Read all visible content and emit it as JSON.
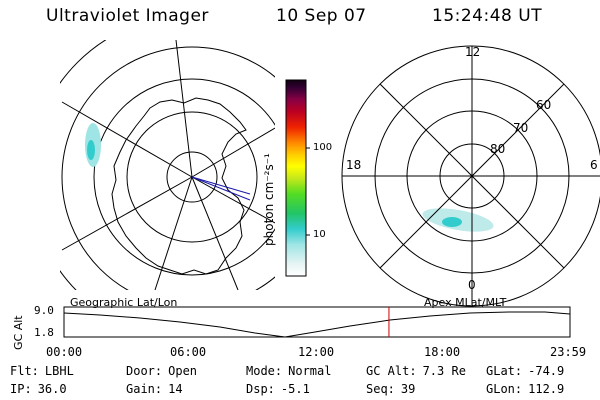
{
  "header": {
    "instrument": "Ultraviolet Imager",
    "date": "10 Sep 07",
    "time": "15:24:48 UT"
  },
  "colorbar": {
    "unit": "photon cm⁻²s⁻¹",
    "tick_100": "100",
    "tick_10": "10",
    "scale": "log"
  },
  "polar_plot": {
    "mlt_labels": {
      "top": "12",
      "left": "18",
      "right": "6",
      "bottom": "0"
    },
    "lat_labels": [
      "60",
      "70",
      "80"
    ]
  },
  "timeline": {
    "left_label": "Geographic Lat/Lon",
    "right_label": "Apex MLat/MLT",
    "y_axis_label": "GC Alt",
    "y_ticks": [
      "9.0",
      "1.8"
    ],
    "x_ticks": [
      "00:00",
      "06:00",
      "12:00",
      "18:00",
      "23:59"
    ],
    "current_time_fraction": 0.6422,
    "marker_color": "#cc0000"
  },
  "info": {
    "filter_label": "Flt:",
    "filter_value": "LBHL",
    "door_label": "Door:",
    "door_value": "Open",
    "mode_label": "Mode:",
    "mode_value": "Normal",
    "gcalt_label": "GC Alt:",
    "gcalt_value": "7.3 Re",
    "glat_label": "GLat:",
    "glat_value": "-74.9",
    "ip_label": "IP:",
    "ip_value": "36.0",
    "gain_label": "Gain:",
    "gain_value": "14",
    "dsp_label": "Dsp:",
    "dsp_value": "-5.1",
    "seq_label": "Seq:",
    "seq_value": "39",
    "glon_label": "GLon:",
    "glon_value": "112.9"
  }
}
